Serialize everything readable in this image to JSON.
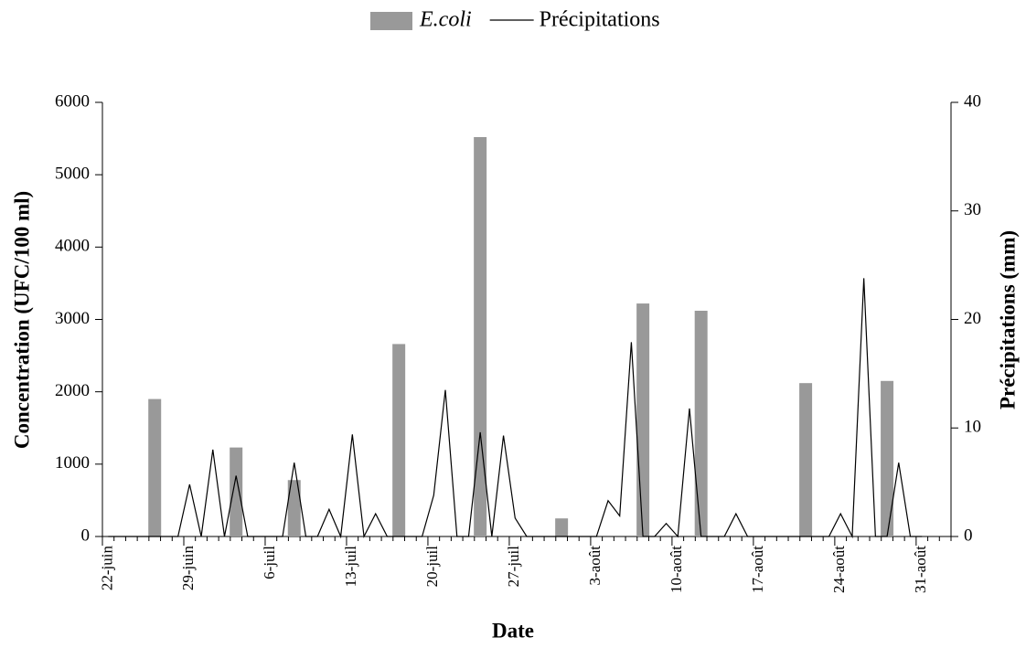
{
  "chart_data": {
    "type": "bar-line",
    "x_label": "Date",
    "y_label": "Concentration (UFC/100 ml)",
    "y2_label": "Précipitations (mm)",
    "categories": [
      "22-juin",
      null,
      null,
      null,
      null,
      null,
      null,
      "29-juin",
      null,
      null,
      null,
      null,
      null,
      null,
      "6-juil",
      null,
      null,
      null,
      null,
      null,
      null,
      "13-juil",
      null,
      null,
      null,
      null,
      null,
      null,
      "20-juil",
      null,
      null,
      null,
      null,
      null,
      null,
      "27-juil",
      null,
      null,
      null,
      null,
      null,
      null,
      "3-août",
      null,
      null,
      null,
      null,
      null,
      null,
      "10-août",
      null,
      null,
      null,
      null,
      null,
      null,
      "17-août",
      null,
      null,
      null,
      null,
      null,
      null,
      "24-août",
      null,
      null,
      null,
      null,
      null,
      null,
      "31-août",
      null,
      null
    ],
    "ylim": [
      0,
      6000
    ],
    "yticks": [
      0,
      1000,
      2000,
      3000,
      4000,
      5000,
      6000
    ],
    "y2lim": [
      0,
      40
    ],
    "y2ticks": [
      0,
      10,
      20,
      30,
      40
    ],
    "legend": "top",
    "series": [
      {
        "name": "E.coli",
        "type": "bar",
        "color": "#999999",
        "values": [
          null,
          null,
          null,
          null,
          1900,
          null,
          null,
          null,
          null,
          null,
          null,
          1230,
          null,
          null,
          null,
          null,
          780,
          null,
          null,
          null,
          null,
          null,
          null,
          null,
          null,
          2660,
          null,
          null,
          null,
          null,
          null,
          null,
          5520,
          null,
          null,
          null,
          null,
          null,
          null,
          250,
          null,
          null,
          null,
          null,
          null,
          null,
          3220,
          null,
          null,
          null,
          null,
          3120,
          null,
          null,
          null,
          null,
          null,
          null,
          null,
          null,
          2120,
          null,
          null,
          null,
          null,
          null,
          null,
          2150,
          null,
          null,
          null,
          null,
          null
        ]
      },
      {
        "name": "Précipitations",
        "type": "line",
        "axis": "y2",
        "color": "#000000",
        "values": [
          0,
          0,
          0,
          0,
          0,
          0,
          0,
          4.8,
          0,
          8.0,
          0,
          5.6,
          0,
          0,
          0,
          0,
          6.8,
          0,
          0,
          2.5,
          0,
          9.4,
          0,
          2.1,
          0,
          0,
          0,
          0,
          3.8,
          13.5,
          0,
          0,
          9.6,
          0,
          9.3,
          1.7,
          0,
          0,
          0,
          0,
          0,
          0,
          0,
          3.3,
          1.9,
          17.9,
          0,
          0,
          1.2,
          0,
          11.8,
          0,
          0,
          0,
          2.1,
          0,
          0,
          0,
          0,
          0,
          0,
          0,
          0,
          2.1,
          0,
          23.8,
          0,
          0,
          6.8,
          0,
          0,
          null,
          null
        ]
      }
    ]
  }
}
